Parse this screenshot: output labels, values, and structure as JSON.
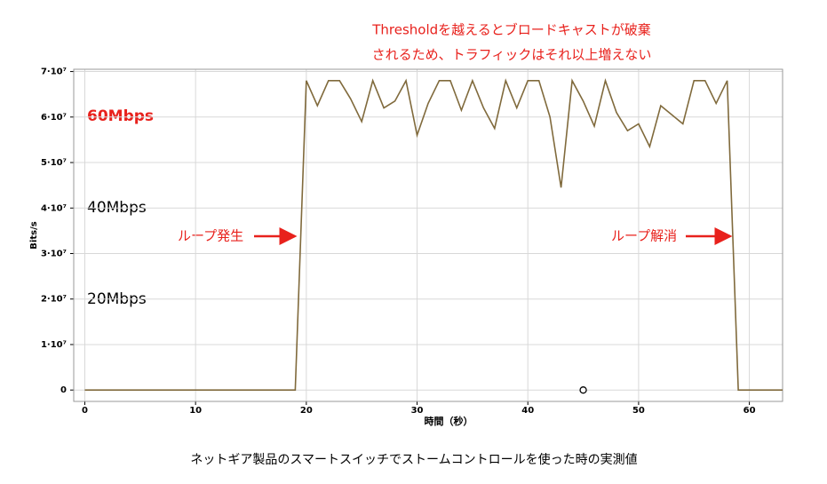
{
  "chart_data": {
    "type": "line",
    "title": [
      "Thresholdを越えるとブロードキャストが破棄",
      "されるため、トラフィックはそれ以上増えない"
    ],
    "x_label": "時間（秒）",
    "y_label": "Bits/s",
    "caption": "ネットギア製品のスマートスイッチでストームコントロールを使った時の実測値",
    "annotations": [
      "60Mbps",
      "40Mbps",
      "20Mbps",
      "ループ発生",
      "ループ解消"
    ],
    "x": [
      0,
      1,
      2,
      3,
      4,
      5,
      6,
      7,
      8,
      9,
      10,
      11,
      12,
      13,
      14,
      15,
      16,
      17,
      18,
      19,
      20,
      21,
      22,
      23,
      24,
      25,
      26,
      27,
      28,
      29,
      30,
      31,
      32,
      33,
      34,
      35,
      36,
      37,
      38,
      39,
      40,
      41,
      42,
      43,
      44,
      45,
      46,
      47,
      48,
      49,
      50,
      51,
      52,
      53,
      54,
      55,
      56,
      57,
      58,
      59,
      60,
      61,
      62,
      63
    ],
    "series": [
      {
        "color": "#806a3c",
        "values": [
          0,
          0,
          0,
          0,
          0,
          0,
          0,
          0,
          0,
          0,
          0,
          0,
          0,
          0,
          0,
          0,
          0,
          0,
          0,
          0,
          68000000,
          62500000,
          68000000,
          68000000,
          64000000,
          59000000,
          68000000,
          62000000,
          63500000,
          68000000,
          56000000,
          63000000,
          68000000,
          68000000,
          61500000,
          68000000,
          62000000,
          57500000,
          68000000,
          62000000,
          68000000,
          68000000,
          60000000,
          44500000,
          68000000,
          63500000,
          58000000,
          68000000,
          61000000,
          57000000,
          58500000,
          53500000,
          62500000,
          60500000,
          58500000,
          68000000,
          68000000,
          63000000,
          68000000,
          0,
          0,
          0,
          0,
          0
        ]
      }
    ],
    "marker": {
      "x": 45,
      "y": 0
    },
    "xlim": [
      -1,
      63
    ],
    "ylim": [
      -2500000,
      70500000
    ],
    "xticks": [
      0,
      10,
      20,
      30,
      40,
      50,
      60
    ],
    "yticks": [
      0,
      {
        "value": 10000000,
        "label": "1·10⁷"
      },
      {
        "value": 20000000,
        "label": "2·10⁷"
      },
      {
        "value": 30000000,
        "label": "3·10⁷"
      },
      {
        "value": 40000000,
        "label": "4·10⁷"
      },
      {
        "value": 50000000,
        "label": "5·10⁷"
      },
      {
        "value": 60000000,
        "label": "6·10⁷"
      },
      {
        "value": 70000000,
        "label": "7·10⁷"
      }
    ],
    "grid": true
  }
}
